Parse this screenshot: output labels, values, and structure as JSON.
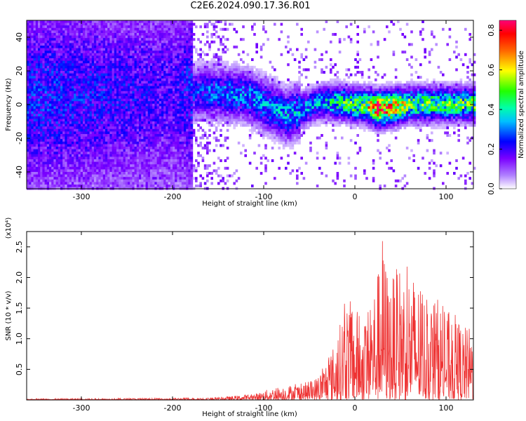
{
  "title": "C2E6.2024.090.17.36.R01",
  "chart_data": [
    {
      "type": "heatmap",
      "xlabel": "Height of straight line (km)",
      "ylabel": "Frequency (Hz)",
      "xlim": [
        -360,
        130
      ],
      "ylim": [
        -50,
        50
      ],
      "xticks": [
        -300,
        -200,
        -100,
        0,
        100
      ],
      "yticks": [
        -40,
        -20,
        0,
        20,
        40
      ],
      "colorbar": {
        "label": "Normalized spectral amplitude",
        "range": [
          0.0,
          0.85
        ],
        "ticks": [
          "0.0",
          "0.2",
          "0.4",
          "0.6",
          "0.8"
        ],
        "colors": [
          "#ffffff",
          "#7a00ff",
          "#0000ff",
          "#00ffff",
          "#00ff00",
          "#ffff00",
          "#ff0000",
          "#ff007f"
        ]
      },
      "description_points": [
        {
          "height_km": -330,
          "freq_hz": 5,
          "amp": 0.25
        },
        {
          "height_km": -200,
          "freq_hz": 7,
          "amp": 0.2
        },
        {
          "height_km": -160,
          "freq_hz": 8,
          "amp": 0.3
        },
        {
          "height_km": -120,
          "freq_hz": 6,
          "amp": 0.32
        },
        {
          "height_km": -75,
          "freq_hz": -6,
          "amp": 0.35
        },
        {
          "height_km": -40,
          "freq_hz": 2,
          "amp": 0.35
        },
        {
          "height_km": -20,
          "freq_hz": 2,
          "amp": 0.45
        },
        {
          "height_km": 10,
          "freq_hz": 0,
          "amp": 0.55
        },
        {
          "height_km": 25,
          "freq_hz": -2,
          "amp": 0.85
        },
        {
          "height_km": 60,
          "freq_hz": 1,
          "amp": 0.5
        },
        {
          "height_km": 100,
          "freq_hz": 1,
          "amp": 0.5
        }
      ]
    },
    {
      "type": "line",
      "xlabel": "Height of straight line (km)",
      "ylabel": "SNR (10 * v/v)",
      "yunit": "(x10⁴)",
      "xlim": [
        -360,
        130
      ],
      "ylim": [
        0,
        2.75
      ],
      "xticks": [
        -300,
        -200,
        -100,
        0,
        100
      ],
      "yticks": [
        0.5,
        1.0,
        1.5,
        2.0,
        2.5
      ],
      "line_color": "#ee3333",
      "envelope": {
        "x": [
          -360,
          -200,
          -150,
          -110,
          -90,
          -70,
          -50,
          -40,
          -30,
          -20,
          -10,
          0,
          10,
          20,
          25,
          30,
          35,
          40,
          50,
          60,
          70,
          80,
          90,
          100,
          110,
          120,
          130
        ],
        "peak": [
          0.02,
          0.03,
          0.04,
          0.1,
          0.2,
          0.25,
          0.3,
          0.4,
          0.7,
          1.0,
          1.7,
          1.55,
          1.3,
          1.85,
          2.1,
          2.75,
          2.2,
          2.0,
          2.25,
          2.15,
          1.95,
          1.6,
          1.7,
          1.45,
          1.4,
          1.2,
          1.2
        ]
      }
    }
  ]
}
